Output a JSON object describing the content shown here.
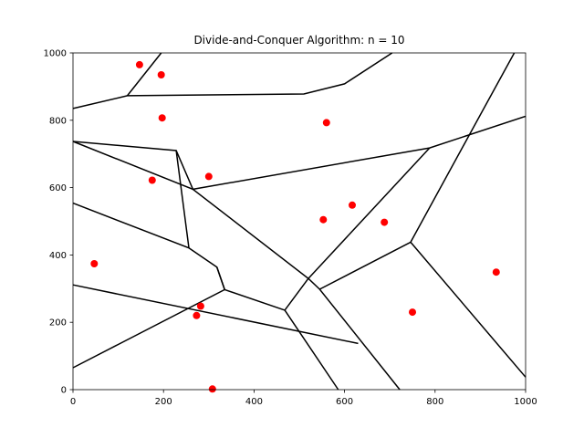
{
  "chart_data": {
    "type": "scatter",
    "title": "Divide-and-Conquer Algorithm: n = 10",
    "xlabel": "",
    "ylabel": "",
    "xlim": [
      0,
      1000
    ],
    "ylim": [
      0,
      1000
    ],
    "xticks": [
      0,
      200,
      400,
      600,
      800,
      1000
    ],
    "yticks": [
      0,
      200,
      400,
      600,
      800,
      1000
    ],
    "xtick_labels": [
      "0",
      "200",
      "400",
      "600",
      "800",
      "1000"
    ],
    "ytick_labels": [
      "0",
      "200",
      "400",
      "600",
      "800",
      "1000"
    ],
    "grid": false,
    "point_color": "#ff0000",
    "edge_color": "#000000",
    "points": [
      {
        "x": 147,
        "y": 965
      },
      {
        "x": 195,
        "y": 935
      },
      {
        "x": 197,
        "y": 807
      },
      {
        "x": 560,
        "y": 793
      },
      {
        "x": 300,
        "y": 633
      },
      {
        "x": 175,
        "y": 622
      },
      {
        "x": 617,
        "y": 548
      },
      {
        "x": 553,
        "y": 505
      },
      {
        "x": 688,
        "y": 497
      },
      {
        "x": 47,
        "y": 374
      },
      {
        "x": 935,
        "y": 349
      },
      {
        "x": 750,
        "y": 230
      },
      {
        "x": 282,
        "y": 248
      },
      {
        "x": 273,
        "y": 220
      },
      {
        "x": 308,
        "y": 2
      }
    ],
    "edges": [
      [
        [
          0,
          835
        ],
        [
          120,
          873
        ],
        [
          510,
          878
        ],
        [
          600,
          908
        ],
        [
          705,
          1000
        ]
      ],
      [
        [
          120,
          873
        ],
        [
          195,
          1000
        ]
      ],
      [
        [
          0,
          737
        ],
        [
          228,
          710
        ],
        [
          265,
          595
        ],
        [
          788,
          718
        ],
        [
          1000,
          812
        ]
      ],
      [
        [
          228,
          710
        ],
        [
          256,
          421
        ],
        [
          0,
          554
        ]
      ],
      [
        [
          256,
          421
        ],
        [
          318,
          364
        ],
        [
          335,
          297
        ],
        [
          468,
          236
        ]
      ],
      [
        [
          0,
          737
        ],
        [
          265,
          595
        ],
        [
          520,
          330
        ],
        [
          788,
          718
        ]
      ],
      [
        [
          520,
          330
        ],
        [
          545,
          298
        ],
        [
          722,
          0
        ]
      ],
      [
        [
          468,
          236
        ],
        [
          520,
          330
        ]
      ],
      [
        [
          468,
          236
        ],
        [
          586,
          0
        ]
      ],
      [
        [
          318,
          364
        ],
        [
          335,
          297
        ],
        [
          0,
          65
        ]
      ],
      [
        [
          0,
          311
        ],
        [
          630,
          137
        ]
      ],
      [
        [
          545,
          298
        ],
        [
          746,
          438
        ],
        [
          877,
          760
        ],
        [
          975,
          1000
        ]
      ],
      [
        [
          746,
          438
        ],
        [
          1000,
          37
        ]
      ]
    ]
  }
}
